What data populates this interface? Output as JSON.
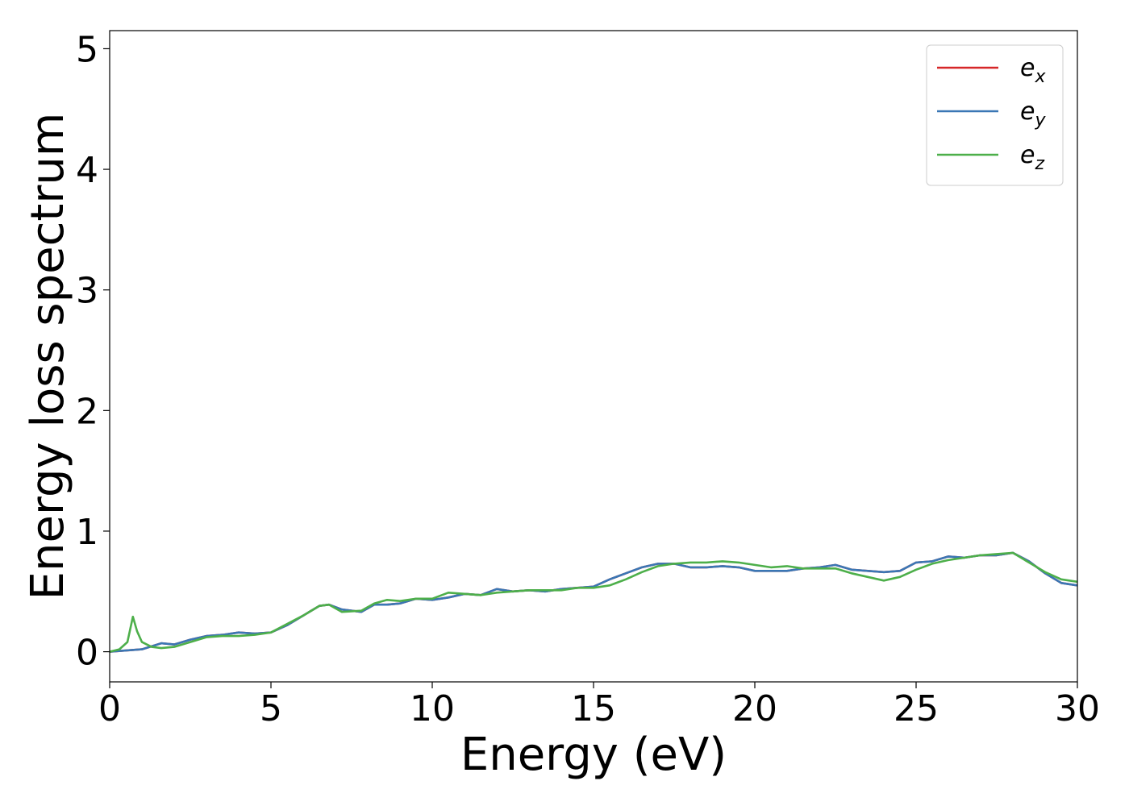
{
  "chart_data": {
    "type": "line",
    "title": "",
    "xlabel": "Energy (eV)",
    "ylabel": "Energy loss spectrum",
    "xlim": [
      0,
      30
    ],
    "ylim": [
      -0.25,
      5.15
    ],
    "xticks": [
      0,
      5,
      10,
      15,
      20,
      25,
      30
    ],
    "yticks": [
      0,
      1,
      2,
      3,
      4,
      5
    ],
    "grid": false,
    "legend_position": "top-right",
    "series": [
      {
        "name": "e_x",
        "label_base": "e",
        "label_sub": "x",
        "color": "#d62728",
        "x": [
          0,
          1,
          1.6,
          2,
          2.5,
          3,
          3.5,
          4,
          4.5,
          5,
          5.5,
          6,
          6.5,
          6.8,
          7.2,
          7.8,
          8.2,
          8.6,
          9,
          9.5,
          10,
          10.5,
          11,
          11.5,
          12,
          12.5,
          13,
          13.5,
          14,
          14.5,
          15,
          15.5,
          16,
          16.5,
          17,
          17.5,
          18,
          18.5,
          19,
          19.5,
          20,
          20.5,
          21,
          21.5,
          22,
          22.5,
          23,
          23.5,
          24,
          24.5,
          25,
          25.5,
          26,
          26.5,
          27,
          27.5,
          28,
          28.5,
          29,
          29.5,
          30
        ],
        "y": [
          0,
          0.02,
          0.07,
          0.06,
          0.1,
          0.13,
          0.14,
          0.16,
          0.15,
          0.16,
          0.22,
          0.3,
          0.38,
          0.39,
          0.35,
          0.33,
          0.39,
          0.39,
          0.4,
          0.44,
          0.43,
          0.45,
          0.48,
          0.47,
          0.52,
          0.5,
          0.51,
          0.5,
          0.52,
          0.53,
          0.54,
          0.6,
          0.65,
          0.7,
          0.73,
          0.73,
          0.7,
          0.7,
          0.71,
          0.7,
          0.67,
          0.67,
          0.67,
          0.69,
          0.7,
          0.72,
          0.68,
          0.67,
          0.66,
          0.67,
          0.74,
          0.75,
          0.79,
          0.78,
          0.8,
          0.8,
          0.82,
          0.75,
          0.65,
          0.57,
          0.55
        ]
      },
      {
        "name": "e_y",
        "label_base": "e",
        "label_sub": "y",
        "color": "#3a77b5",
        "x": [
          0,
          1,
          1.6,
          2,
          2.5,
          3,
          3.5,
          4,
          4.5,
          5,
          5.5,
          6,
          6.5,
          6.8,
          7.2,
          7.8,
          8.2,
          8.6,
          9,
          9.5,
          10,
          10.5,
          11,
          11.5,
          12,
          12.5,
          13,
          13.5,
          14,
          14.5,
          15,
          15.5,
          16,
          16.5,
          17,
          17.5,
          18,
          18.5,
          19,
          19.5,
          20,
          20.5,
          21,
          21.5,
          22,
          22.5,
          23,
          23.5,
          24,
          24.5,
          25,
          25.5,
          26,
          26.5,
          27,
          27.5,
          28,
          28.5,
          29,
          29.5,
          30
        ],
        "y": [
          0,
          0.02,
          0.07,
          0.06,
          0.1,
          0.13,
          0.14,
          0.16,
          0.15,
          0.16,
          0.22,
          0.3,
          0.38,
          0.39,
          0.35,
          0.33,
          0.39,
          0.39,
          0.4,
          0.44,
          0.43,
          0.45,
          0.48,
          0.47,
          0.52,
          0.5,
          0.51,
          0.5,
          0.52,
          0.53,
          0.54,
          0.6,
          0.65,
          0.7,
          0.73,
          0.73,
          0.7,
          0.7,
          0.71,
          0.7,
          0.67,
          0.67,
          0.67,
          0.69,
          0.7,
          0.72,
          0.68,
          0.67,
          0.66,
          0.67,
          0.74,
          0.75,
          0.79,
          0.78,
          0.8,
          0.8,
          0.82,
          0.75,
          0.65,
          0.57,
          0.55
        ]
      },
      {
        "name": "e_z",
        "label_base": "e",
        "label_sub": "z",
        "color": "#4daf4a",
        "x": [
          0,
          0.3,
          0.55,
          0.72,
          0.85,
          1,
          1.3,
          1.6,
          2,
          2.5,
          3,
          3.5,
          4,
          4.5,
          5,
          5.5,
          6,
          6.5,
          6.8,
          7.2,
          7.8,
          8.2,
          8.6,
          9,
          9.5,
          10,
          10.5,
          11,
          11.5,
          12,
          12.5,
          13,
          13.5,
          14,
          14.5,
          15,
          15.5,
          16,
          16.5,
          17,
          17.5,
          18,
          18.5,
          19,
          19.5,
          20,
          20.5,
          21,
          21.5,
          22,
          22.5,
          23,
          23.5,
          24,
          24.5,
          25,
          25.5,
          26,
          26.5,
          27,
          27.5,
          28,
          28.5,
          29,
          29.5,
          30
        ],
        "y": [
          0,
          0.02,
          0.08,
          0.29,
          0.17,
          0.08,
          0.04,
          0.03,
          0.04,
          0.08,
          0.12,
          0.13,
          0.13,
          0.14,
          0.16,
          0.23,
          0.3,
          0.38,
          0.39,
          0.33,
          0.34,
          0.4,
          0.43,
          0.42,
          0.44,
          0.44,
          0.49,
          0.48,
          0.47,
          0.49,
          0.5,
          0.51,
          0.51,
          0.51,
          0.53,
          0.53,
          0.55,
          0.6,
          0.66,
          0.71,
          0.73,
          0.74,
          0.74,
          0.75,
          0.74,
          0.72,
          0.7,
          0.71,
          0.69,
          0.69,
          0.69,
          0.65,
          0.62,
          0.59,
          0.62,
          0.68,
          0.73,
          0.76,
          0.78,
          0.8,
          0.81,
          0.82,
          0.74,
          0.66,
          0.6,
          0.58
        ]
      }
    ]
  }
}
